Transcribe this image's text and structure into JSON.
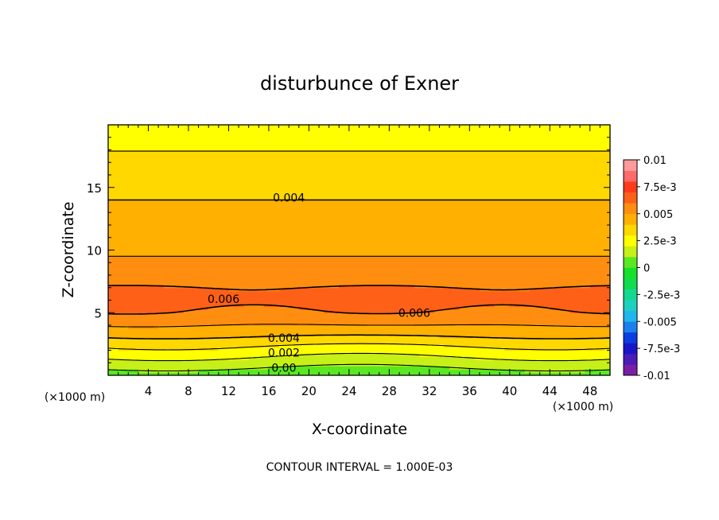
{
  "chart_data": {
    "type": "heatmap",
    "title": "disturbunce of Exner",
    "xlabel": "X-coordinate",
    "ylabel": "Z-coordinate",
    "x_unit_left": "(×1000 m)",
    "x_unit_right": "(×1000 m)",
    "xlim": [
      0,
      50
    ],
    "ylim": [
      0,
      20
    ],
    "x_ticks": [
      4,
      8,
      12,
      16,
      20,
      24,
      28,
      32,
      36,
      40,
      44,
      48
    ],
    "y_ticks": [
      5,
      10,
      15
    ],
    "contour_interval_text": "CONTOUR INTERVAL = 1.000E-03",
    "contour_labels": [
      {
        "text": "0.004",
        "x": 18,
        "z": 14.2
      },
      {
        "text": "0.006",
        "x": 11.5,
        "z": 6.1
      },
      {
        "text": "0.006",
        "x": 30.5,
        "z": 5.0
      },
      {
        "text": "0.004",
        "x": 17.5,
        "z": 3.0
      },
      {
        "text": "0.002",
        "x": 17.5,
        "z": 1.8
      },
      {
        "text": "0.00",
        "x": 17.5,
        "z": 0.6
      }
    ],
    "colorbar": {
      "labels": [
        "0.01",
        "7.5e-3",
        "0.005",
        "2.5e-3",
        "0",
        "-2.5e-3",
        "-0.005",
        "-7.5e-3",
        "-0.01"
      ],
      "range": [
        -0.01,
        0.01
      ],
      "colors": [
        "#7a1ea8",
        "#4b1cb8",
        "#1a16c8",
        "#0a3ee0",
        "#1a80ee",
        "#20b6ee",
        "#1ed0c0",
        "#14d890",
        "#10dc50",
        "#16e02a",
        "#5ae820",
        "#c6f018",
        "#ffff00",
        "#ffd800",
        "#ffb000",
        "#ff8e10",
        "#ff6018",
        "#ff3a1c",
        "#ff6a6a",
        "#ff9a9a"
      ]
    },
    "profile": {
      "z": [
        0,
        0.6,
        1.2,
        1.8,
        2.4,
        3.0,
        3.6,
        4.3,
        5.0,
        5.8,
        6.8,
        8.0,
        9.5,
        11.0,
        13.0,
        15.0,
        17.0,
        18.5,
        19.5
      ],
      "value": [
        0.0004,
        0.001,
        0.0017,
        0.0024,
        0.0031,
        0.0039,
        0.0046,
        0.0053,
        0.0059,
        0.0063,
        0.0061,
        0.0056,
        0.005,
        0.0046,
        0.0042,
        0.0038,
        0.0033,
        0.0028,
        0.0023
      ]
    }
  }
}
